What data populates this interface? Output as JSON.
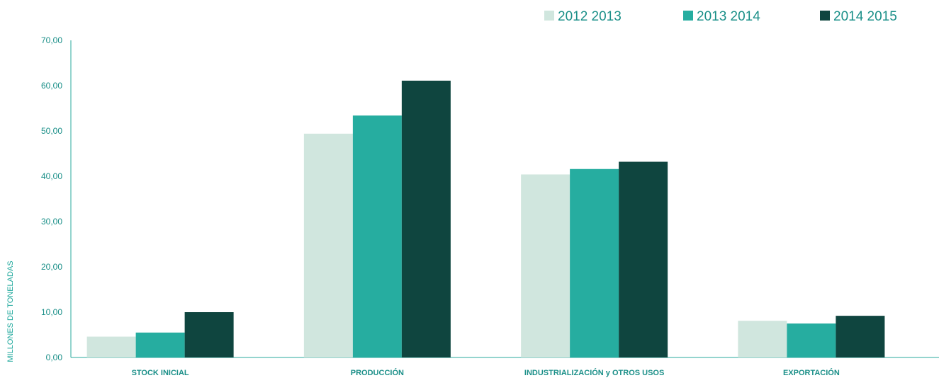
{
  "chart_data": {
    "type": "bar",
    "categories": [
      "STOCK INICIAL",
      "PRODUCCIÓN",
      "INDUSTRIALIZACIÓN y OTROS USOS",
      "EXPORTACIÓN"
    ],
    "series": [
      {
        "name": "2012 2013",
        "color": "#d0e6de",
        "values": [
          4.6,
          49.4,
          40.4,
          8.1
        ]
      },
      {
        "name": "2013 2014",
        "color": "#26ada0",
        "values": [
          5.5,
          53.4,
          41.6,
          7.5
        ]
      },
      {
        "name": "2014 2015",
        "color": "#0f453f",
        "values": [
          10.0,
          61.1,
          43.2,
          9.2
        ]
      }
    ],
    "ylabel": "MILLONES DE TONELADAS",
    "ylim": [
      0,
      70
    ],
    "yticks": [
      "0,00",
      "10,00",
      "20,00",
      "30,00",
      "40,00",
      "50,00",
      "60,00",
      "70,00"
    ],
    "legend_position": "top-right",
    "grid": false
  }
}
